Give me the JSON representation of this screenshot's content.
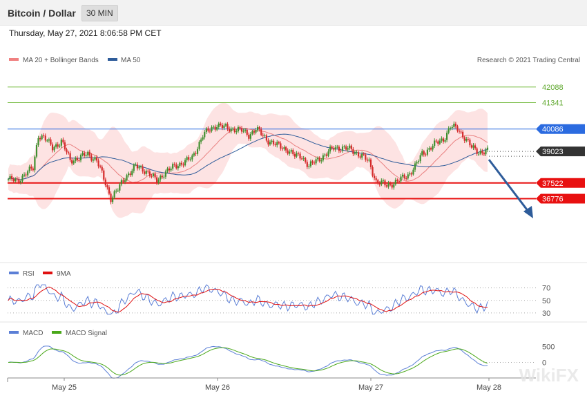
{
  "header": {
    "title": "Bitcoin / Dollar",
    "timeframe": "30 MIN"
  },
  "timestamp": "Thursday, May 27, 2021 8:06:58 PM CET",
  "legend": {
    "ma20": "MA 20 + Bollinger Bands",
    "ma50": "MA 50"
  },
  "credit": "Research © 2021 Trading Central",
  "watermark": "WikiFX",
  "colors": {
    "bull": "#3f8f2f",
    "bear": "#d42a2a",
    "ma50": "#2e5c9a",
    "ma20": "#e98080",
    "band": "#fde3e3",
    "arrow": "#2e5c9a"
  },
  "chart_data": {
    "type": "candlestick",
    "symbol": "Bitcoin / Dollar",
    "interval": "30 MIN",
    "ylim": [
      33800,
      43200
    ],
    "x_labels": [
      "May 25",
      "May 26",
      "May 27",
      "May 28"
    ],
    "levels": [
      {
        "value": 42088,
        "label": "42088",
        "color": "#7cbf4a",
        "label_color": "#5fa82e",
        "box": false
      },
      {
        "value": 41341,
        "label": "41341",
        "color": "#7cbf4a",
        "label_color": "#5fa82e",
        "box": false
      },
      {
        "value": 40086,
        "label": "40086",
        "color": "#2b6be0",
        "label_color": "#ffffff",
        "box": true,
        "box_color": "#2b6be0"
      },
      {
        "value": 39023,
        "label": "39023",
        "color": "#555555",
        "label_color": "#ffffff",
        "box": true,
        "box_color": "#333333",
        "dotted": true
      },
      {
        "value": 37522,
        "label": "37522",
        "color": "#e81010",
        "label_color": "#ffffff",
        "box": true,
        "box_color": "#e81010"
      },
      {
        "value": 36776,
        "label": "36776",
        "color": "#e81010",
        "label_color": "#ffffff",
        "box": true,
        "box_color": "#e81010"
      }
    ],
    "close_anchors": [
      [
        0,
        37700
      ],
      [
        5,
        37600
      ],
      [
        10,
        38000
      ],
      [
        14,
        38200
      ],
      [
        17,
        39800
      ],
      [
        20,
        39700
      ],
      [
        25,
        39200
      ],
      [
        30,
        39500
      ],
      [
        35,
        38600
      ],
      [
        40,
        38700
      ],
      [
        45,
        38900
      ],
      [
        50,
        38600
      ],
      [
        55,
        37500
      ],
      [
        58,
        36800
      ],
      [
        62,
        37200
      ],
      [
        66,
        37800
      ],
      [
        72,
        38300
      ],
      [
        78,
        38100
      ],
      [
        84,
        37600
      ],
      [
        88,
        38000
      ],
      [
        96,
        38400
      ],
      [
        104,
        38700
      ],
      [
        110,
        39800
      ],
      [
        118,
        40300
      ],
      [
        124,
        40100
      ],
      [
        128,
        40100
      ],
      [
        132,
        40000
      ],
      [
        136,
        39800
      ],
      [
        140,
        40100
      ],
      [
        146,
        39600
      ],
      [
        152,
        39300
      ],
      [
        158,
        39100
      ],
      [
        162,
        38800
      ],
      [
        166,
        38800
      ],
      [
        170,
        38300
      ],
      [
        176,
        38700
      ],
      [
        180,
        38900
      ],
      [
        184,
        39200
      ],
      [
        188,
        39200
      ],
      [
        194,
        39100
      ],
      [
        200,
        38800
      ],
      [
        204,
        38500
      ],
      [
        208,
        37600
      ],
      [
        214,
        37400
      ],
      [
        220,
        37600
      ],
      [
        226,
        37900
      ],
      [
        230,
        38300
      ],
      [
        234,
        38900
      ],
      [
        240,
        39300
      ],
      [
        246,
        39600
      ],
      [
        250,
        40200
      ],
      [
        254,
        40100
      ],
      [
        258,
        39700
      ],
      [
        262,
        39200
      ],
      [
        266,
        39000
      ],
      [
        270,
        39023
      ]
    ],
    "indicators": {
      "rsi": {
        "label": "RSI",
        "signal": "9MA",
        "levels": [
          70,
          50,
          30
        ]
      },
      "macd": {
        "label": "MACD",
        "signal": "MACD Signal",
        "levels": [
          500,
          0
        ]
      }
    }
  }
}
